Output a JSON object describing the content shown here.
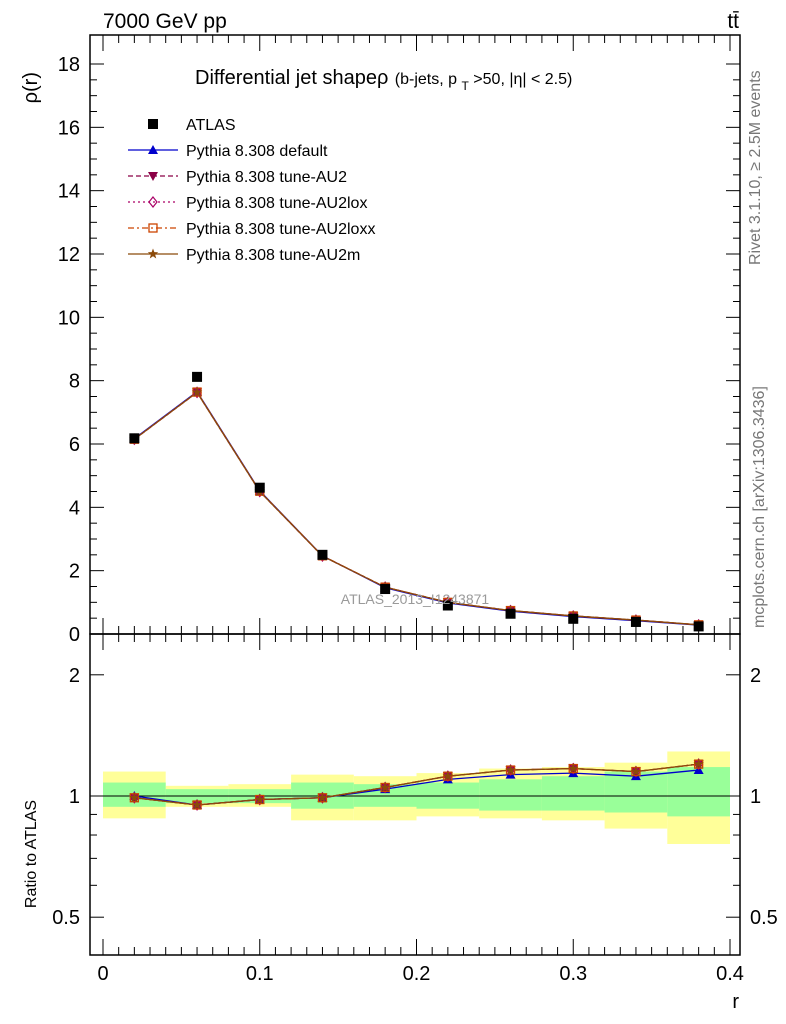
{
  "header": {
    "energy": "7000 GeV pp",
    "process": "tt̄"
  },
  "side_labels": {
    "rivet": "Rivet 3.1.10, ≥ 2.5M events",
    "mcplots": "mcplots.cern.ch [arXiv:1306.3436]"
  },
  "watermark": "ATLAS_2013_I1243871",
  "chart_data": [
    {
      "type": "line",
      "title": "Differential jet shapeρ (b-jets, pT>50, |η| < 2.5)",
      "title_main": "Differential jet shapeρ",
      "title_sub_a": "(b-jets, p",
      "title_sub_T": "T",
      "title_sub_b": ">50, |η| < 2.5)",
      "ylabel": "ρ(r)",
      "xlabel": "",
      "xlim": [
        0,
        0.4
      ],
      "ylim": [
        0,
        19
      ],
      "yticks": [
        "0",
        "2",
        "4",
        "6",
        "8",
        "10",
        "12",
        "14",
        "16",
        "18"
      ],
      "x": [
        0.02,
        0.06,
        0.1,
        0.14,
        0.18,
        0.22,
        0.26,
        0.3,
        0.34,
        0.38
      ],
      "data": {
        "name": "ATLAS",
        "values": [
          6.18,
          8.12,
          4.62,
          2.5,
          1.42,
          0.9,
          0.64,
          0.48,
          0.38,
          0.24
        ]
      },
      "series": [
        {
          "name": "Pythia 8.308 default",
          "color": "#0000cc",
          "marker": "triangle-up",
          "dash": "solid",
          "values": [
            6.17,
            7.65,
            4.52,
            2.47,
            1.46,
            0.98,
            0.72,
            0.55,
            0.42,
            0.28
          ]
        },
        {
          "name": "Pythia 8.308 tune-AU2",
          "color": "#8b0046",
          "marker": "triangle-down",
          "dash": "dashed",
          "values": [
            6.15,
            7.63,
            4.5,
            2.46,
            1.48,
            1.0,
            0.74,
            0.57,
            0.44,
            0.29
          ]
        },
        {
          "name": "Pythia 8.308 tune-AU2lox",
          "color": "#aa0066",
          "marker": "diamond-open",
          "dash": "dotted",
          "values": [
            6.15,
            7.63,
            4.5,
            2.46,
            1.48,
            1.0,
            0.74,
            0.57,
            0.44,
            0.29
          ]
        },
        {
          "name": "Pythia 8.308 tune-AU2loxx",
          "color": "#cc4400",
          "marker": "square-open",
          "dash": "dashdot",
          "values": [
            6.15,
            7.64,
            4.51,
            2.47,
            1.48,
            1.0,
            0.74,
            0.57,
            0.44,
            0.29
          ]
        },
        {
          "name": "Pythia 8.308 tune-AU2m",
          "color": "#8b4a0a",
          "marker": "star",
          "dash": "solid",
          "values": [
            6.15,
            7.63,
            4.5,
            2.46,
            1.48,
            1.0,
            0.74,
            0.57,
            0.44,
            0.29
          ]
        }
      ],
      "legend_position": "top-left"
    },
    {
      "type": "line",
      "ylabel": "Ratio to ATLAS",
      "xlabel": "r",
      "xlim": [
        0,
        0.4
      ],
      "ylim": [
        0.4,
        2.3
      ],
      "log_y": true,
      "xticks": [
        "0",
        "0.1",
        "0.2",
        "0.3",
        "0.4"
      ],
      "yticks": [
        "0.5",
        "1",
        "2"
      ],
      "x_edges": [
        0.0,
        0.04,
        0.08,
        0.12,
        0.16,
        0.2,
        0.24,
        0.28,
        0.32,
        0.36,
        0.4
      ],
      "band_stat": [
        [
          0.94,
          1.08
        ],
        [
          0.96,
          1.04
        ],
        [
          0.96,
          1.04
        ],
        [
          0.93,
          1.08
        ],
        [
          0.94,
          1.07
        ],
        [
          0.93,
          1.08
        ],
        [
          0.92,
          1.1
        ],
        [
          0.92,
          1.12
        ],
        [
          0.91,
          1.15
        ],
        [
          0.89,
          1.18
        ]
      ],
      "band_total": [
        [
          0.88,
          1.15
        ],
        [
          0.94,
          1.06
        ],
        [
          0.94,
          1.07
        ],
        [
          0.87,
          1.13
        ],
        [
          0.87,
          1.12
        ],
        [
          0.89,
          1.14
        ],
        [
          0.88,
          1.17
        ],
        [
          0.87,
          1.18
        ],
        [
          0.83,
          1.21
        ],
        [
          0.76,
          1.29
        ]
      ],
      "band_colors": {
        "total": "#ffff99",
        "stat": "#99ff99"
      },
      "series": [
        {
          "name": "Pythia 8.308 default",
          "color": "#0000cc",
          "values": [
            1.0,
            0.95,
            0.98,
            0.99,
            1.04,
            1.1,
            1.13,
            1.14,
            1.12,
            1.16
          ]
        },
        {
          "name": "Pythia 8.308 tune-AU2",
          "color": "#8b0046",
          "values": [
            0.99,
            0.95,
            0.98,
            0.99,
            1.05,
            1.12,
            1.16,
            1.17,
            1.15,
            1.2
          ]
        },
        {
          "name": "Pythia 8.308 tune-AU2lox",
          "color": "#aa0066",
          "values": [
            0.99,
            0.95,
            0.98,
            0.99,
            1.05,
            1.12,
            1.16,
            1.17,
            1.15,
            1.2
          ]
        },
        {
          "name": "Pythia 8.308 tune-AU2loxx",
          "color": "#cc4400",
          "values": [
            0.99,
            0.95,
            0.98,
            0.99,
            1.05,
            1.12,
            1.16,
            1.17,
            1.15,
            1.2
          ]
        },
        {
          "name": "Pythia 8.308 tune-AU2m",
          "color": "#8b4a0a",
          "values": [
            0.99,
            0.95,
            0.98,
            0.99,
            1.05,
            1.12,
            1.16,
            1.17,
            1.15,
            1.2
          ]
        }
      ]
    }
  ]
}
